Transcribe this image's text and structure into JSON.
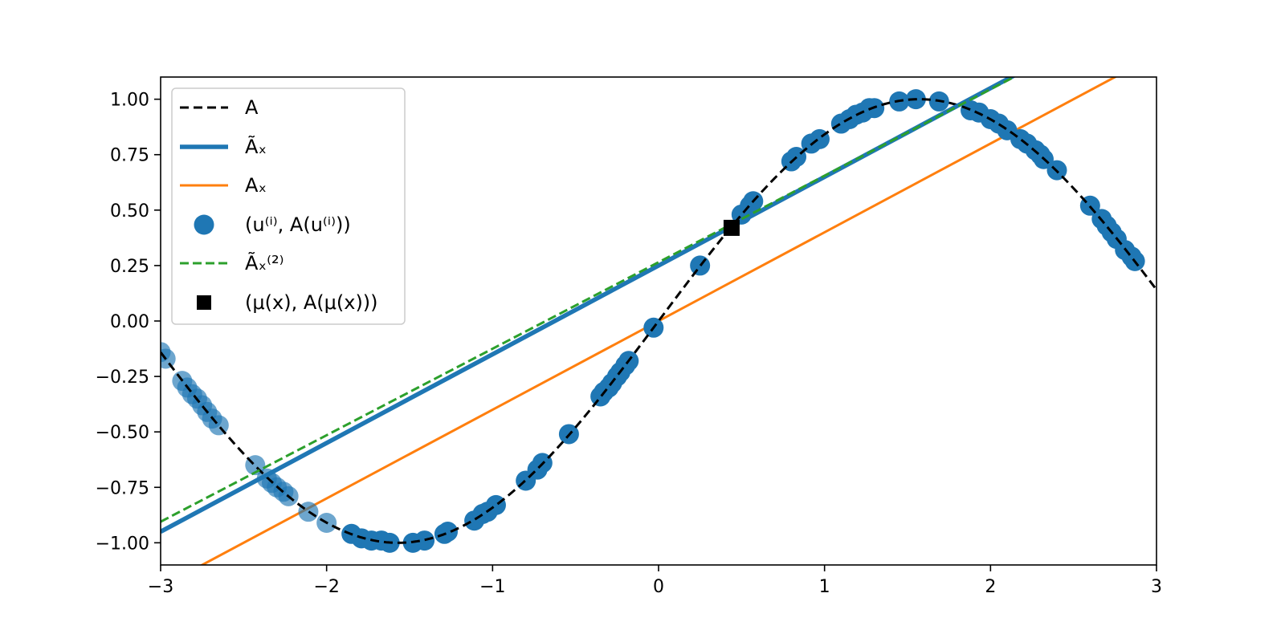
{
  "chart_data": {
    "type": "scatter",
    "title": "",
    "xlabel": "",
    "ylabel": "",
    "xlim": [
      -3,
      3
    ],
    "ylim": [
      -1.1,
      1.1
    ],
    "grid": false,
    "legend_position": "top-left",
    "xticks": [
      -3,
      -2,
      -1,
      0,
      1,
      2,
      3
    ],
    "xtick_labels": [
      "−3",
      "−2",
      "−1",
      "0",
      "1",
      "2",
      "3"
    ],
    "yticks": [
      -1.0,
      -0.75,
      -0.5,
      -0.25,
      0.0,
      0.25,
      0.5,
      0.75,
      1.0
    ],
    "ytick_labels": [
      "−1.00",
      "−0.75",
      "−0.50",
      "−0.25",
      "0.00",
      "0.25",
      "0.50",
      "0.75",
      "1.00"
    ],
    "series": [
      {
        "key": "A",
        "name": "A",
        "kind": "curve",
        "function": "sin",
        "color": "#000000",
        "style": "dashed",
        "legend_label": "A"
      },
      {
        "key": "A_tilde_x",
        "name": "Ãₓ",
        "kind": "line",
        "slope": 0.4,
        "intercept": 0.25,
        "color": "#1f77b4",
        "style": "solid-thick",
        "legend_label": "Ãₓ"
      },
      {
        "key": "A_x",
        "name": "Aₓ",
        "kind": "line",
        "slope": 0.4,
        "intercept": 0.0,
        "color": "#ff7f0e",
        "style": "solid",
        "legend_label": "Aₓ"
      },
      {
        "key": "samples",
        "name": "(u⁽ⁱ⁾, A(u⁽ⁱ⁾))",
        "kind": "scatter",
        "color": "#1f77b4",
        "legend_label": "(u⁽ⁱ⁾, A(u⁽ⁱ⁾))",
        "x": [
          -3.0,
          -2.97,
          -2.87,
          -2.84,
          -2.81,
          -2.78,
          -2.75,
          -2.72,
          -2.69,
          -2.65,
          -2.43,
          -2.36,
          -2.33,
          -2.3,
          -2.26,
          -2.23,
          -2.11,
          -2.0,
          -1.85,
          -1.79,
          -1.73,
          -1.67,
          -1.62,
          -1.48,
          -1.41,
          -1.29,
          -1.27,
          -1.11,
          -1.06,
          -1.03,
          -0.98,
          -0.8,
          -0.73,
          -0.7,
          -0.54,
          -0.35,
          -0.33,
          -0.3,
          -0.28,
          -0.25,
          -0.23,
          -0.2,
          -0.18,
          -0.03,
          0.25,
          0.5,
          0.55,
          0.57,
          0.8,
          0.83,
          0.92,
          0.97,
          1.1,
          1.15,
          1.19,
          1.23,
          1.27,
          1.3,
          1.45,
          1.55,
          1.69,
          1.88,
          1.93,
          2.0,
          2.05,
          2.1,
          2.18,
          2.22,
          2.27,
          2.3,
          2.32,
          2.4,
          2.6,
          2.67,
          2.7,
          2.73,
          2.76,
          2.81,
          2.85,
          2.87
        ],
        "y": [
          -0.14,
          -0.17,
          -0.27,
          -0.3,
          -0.33,
          -0.35,
          -0.38,
          -0.41,
          -0.44,
          -0.47,
          -0.65,
          -0.71,
          -0.73,
          -0.75,
          -0.77,
          -0.79,
          -0.86,
          -0.91,
          -0.96,
          -0.98,
          -0.99,
          -0.99,
          -1.0,
          -1.0,
          -0.99,
          -0.96,
          -0.95,
          -0.9,
          -0.87,
          -0.86,
          -0.83,
          -0.72,
          -0.67,
          -0.64,
          -0.51,
          -0.34,
          -0.32,
          -0.3,
          -0.28,
          -0.25,
          -0.23,
          -0.2,
          -0.18,
          -0.03,
          0.25,
          0.48,
          0.52,
          0.54,
          0.72,
          0.74,
          0.8,
          0.82,
          0.89,
          0.91,
          0.93,
          0.94,
          0.96,
          0.96,
          0.99,
          1.0,
          0.99,
          0.95,
          0.94,
          0.91,
          0.89,
          0.86,
          0.82,
          0.8,
          0.77,
          0.75,
          0.73,
          0.68,
          0.52,
          0.46,
          0.43,
          0.4,
          0.37,
          0.32,
          0.29,
          0.27
        ]
      },
      {
        "key": "A_tilde_x_2",
        "name": "Ãₓ⁽²⁾",
        "kind": "line",
        "slope": 0.39,
        "intercept": 0.265,
        "color": "#2ca02c",
        "style": "dashed",
        "legend_label": "Ãₓ⁽²⁾"
      },
      {
        "key": "mu",
        "name": "(μ(x), A(μ(x)))",
        "kind": "marker",
        "x": 0.44,
        "y": 0.42,
        "color": "#000000",
        "legend_label": "(μ(x), A(μ(x)))"
      }
    ]
  }
}
